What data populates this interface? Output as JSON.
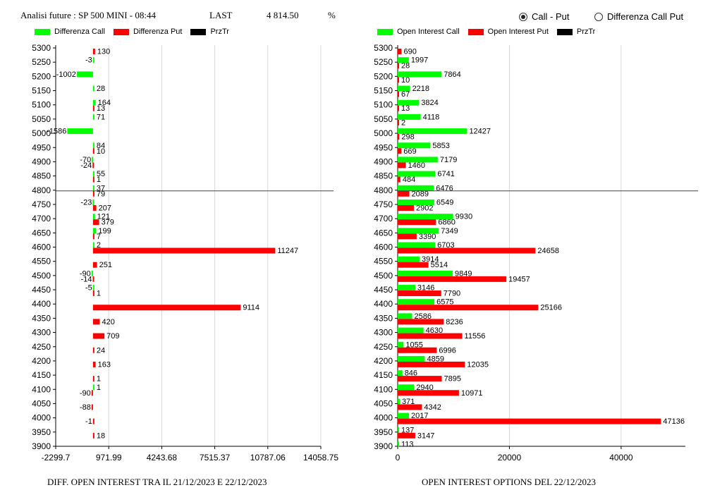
{
  "header": {
    "title": "Analisi future : SP 500 MINI - 08:44",
    "last_label": "LAST",
    "last_value": "4 814.50",
    "pct_label": "%"
  },
  "view_toggle": {
    "option1": "Call - Put",
    "option2": "Differenza Call Put",
    "selected": "Call - Put"
  },
  "colors": {
    "call": "#00ff00",
    "put": "#ff0000",
    "price": "#000000"
  },
  "left_chart": {
    "legend": [
      "Differenza Call",
      "Differenza Put",
      "PrzTr"
    ],
    "caption": "DIFF. OPEN INTEREST TRA IL 21/12/2023 E 22/12/2023"
  },
  "right_chart": {
    "legend": [
      "Open Interest Call",
      "Open Interest Put",
      "PrzTr"
    ],
    "caption": "OPEN INTEREST OPTIONS DEL 22/12/2023"
  },
  "chart_data": [
    {
      "type": "bar",
      "orientation": "horizontal",
      "categories": [
        "5300",
        "5250",
        "5200",
        "5150",
        "5100",
        "5050",
        "5000",
        "4950",
        "4900",
        "4850",
        "4800",
        "4750",
        "4700",
        "4650",
        "4600",
        "4550",
        "4500",
        "4450",
        "4400",
        "4350",
        "4300",
        "4250",
        "4200",
        "4150",
        "4100",
        "4050",
        "4000",
        "3950",
        "3900"
      ],
      "series": [
        {
          "name": "Differenza Call",
          "color": "#00ff00",
          "values": [
            null,
            -3,
            -1002,
            28,
            164,
            71,
            -1586,
            84,
            -70,
            55,
            37,
            -23,
            121,
            199,
            2,
            null,
            -90,
            -5,
            null,
            null,
            null,
            null,
            null,
            null,
            1,
            null,
            null,
            null,
            null
          ]
        },
        {
          "name": "Differenza Put",
          "color": "#ff0000",
          "values": [
            130,
            null,
            null,
            null,
            13,
            null,
            null,
            10,
            -24,
            1,
            79,
            207,
            379,
            7,
            11247,
            251,
            -14,
            1,
            9114,
            420,
            709,
            24,
            163,
            1,
            -90,
            -88,
            -1,
            18,
            null
          ]
        }
      ],
      "price_line": {
        "name": "PrzTr",
        "value": 4800
      },
      "xticks": [
        "-2299.7",
        "971.99",
        "4243.68",
        "7515.37",
        "10787.06",
        "14058.75"
      ],
      "xlim": [
        -2299.7,
        14058.75
      ]
    },
    {
      "type": "bar",
      "orientation": "horizontal",
      "categories": [
        "5300",
        "5250",
        "5200",
        "5150",
        "5100",
        "5050",
        "5000",
        "4950",
        "4900",
        "4850",
        "4800",
        "4750",
        "4700",
        "4650",
        "4600",
        "4550",
        "4500",
        "4450",
        "4400",
        "4350",
        "4300",
        "4250",
        "4200",
        "4150",
        "4100",
        "4050",
        "4000",
        "3950",
        "3900"
      ],
      "series": [
        {
          "name": "Open Interest Call",
          "color": "#00ff00",
          "values": [
            null,
            1997,
            7864,
            2218,
            3824,
            4118,
            12427,
            5853,
            7179,
            6741,
            6476,
            6549,
            9930,
            7349,
            6703,
            3914,
            9849,
            3146,
            6575,
            2586,
            4630,
            1055,
            4859,
            846,
            2940,
            371,
            2017,
            137,
            113
          ]
        },
        {
          "name": "Open Interest Put",
          "color": "#ff0000",
          "values": [
            690,
            28,
            10,
            67,
            13,
            2,
            298,
            669,
            1460,
            484,
            2089,
            2902,
            6860,
            3390,
            24658,
            5514,
            19457,
            7790,
            25166,
            8236,
            11556,
            6996,
            12035,
            7895,
            10971,
            4342,
            47136,
            3147,
            null
          ]
        }
      ],
      "price_line": {
        "name": "PrzTr",
        "value": 4800
      },
      "xticks": [
        "0",
        "20000",
        "40000"
      ],
      "xlim": [
        0,
        51500
      ]
    }
  ]
}
